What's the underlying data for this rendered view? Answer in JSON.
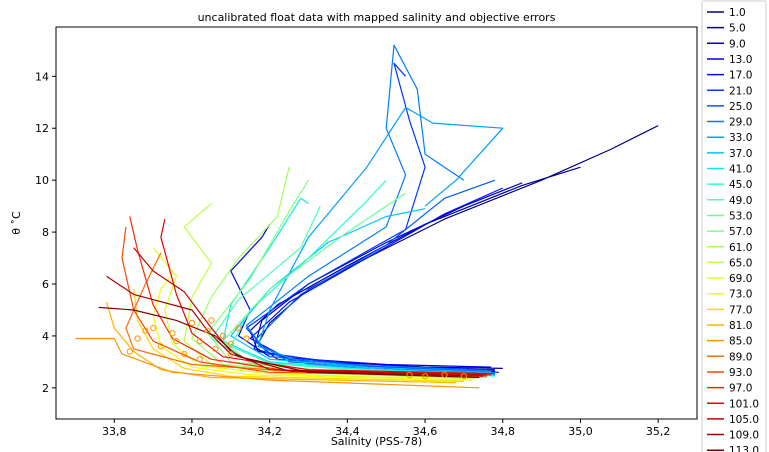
{
  "chart_data": {
    "type": "line",
    "title": "uncalibrated float data with mapped salinity and objective errors",
    "xlabel": "Salinity (PSS-78)",
    "ylabel": "θ ˚C",
    "xlim": [
      33.65,
      35.3
    ],
    "ylim": [
      0.8,
      15.9
    ],
    "x_ticks": [
      "33,8",
      "34,0",
      "34,2",
      "34,4",
      "34,6",
      "34,8",
      "35,0",
      "35,2"
    ],
    "x_tick_values": [
      33.8,
      34.0,
      34.2,
      34.4,
      34.6,
      34.8,
      35.0,
      35.2
    ],
    "y_ticks": [
      "2",
      "4",
      "6",
      "8",
      "10",
      "12",
      "14"
    ],
    "y_tick_values": [
      2,
      4,
      6,
      8,
      10,
      12,
      14
    ],
    "grid": false,
    "legend_position": "outside-right",
    "colormap": "jet",
    "series": [
      {
        "name": "1.0",
        "color": "#00007f",
        "points": [
          [
            34.78,
            2.7
          ],
          [
            34.6,
            2.7
          ],
          [
            34.4,
            2.85
          ],
          [
            34.22,
            3.1
          ],
          [
            34.17,
            3.7
          ],
          [
            34.2,
            4.5
          ],
          [
            34.3,
            5.8
          ],
          [
            34.45,
            7.0
          ],
          [
            34.65,
            8.5
          ],
          [
            34.9,
            10.0
          ],
          [
            35.08,
            11.2
          ],
          [
            35.2,
            12.1
          ]
        ]
      },
      {
        "name": "5.0",
        "color": "#0000a3",
        "points": [
          [
            34.8,
            2.75
          ],
          [
            34.6,
            2.8
          ],
          [
            34.35,
            3.0
          ],
          [
            34.17,
            3.4
          ],
          [
            34.15,
            4.2
          ],
          [
            34.22,
            5.2
          ],
          [
            34.4,
            6.7
          ],
          [
            34.6,
            8.3
          ],
          [
            34.85,
            9.8
          ],
          [
            35.0,
            10.5
          ]
        ]
      },
      {
        "name": "9.0",
        "color": "#0000c8",
        "points": [
          [
            34.78,
            2.65
          ],
          [
            34.55,
            2.75
          ],
          [
            34.3,
            2.95
          ],
          [
            34.16,
            3.5
          ],
          [
            34.18,
            4.6
          ],
          [
            34.3,
            6.0
          ],
          [
            34.5,
            7.6
          ],
          [
            34.7,
            9.0
          ],
          [
            34.85,
            9.9
          ]
        ]
      },
      {
        "name": "13.0",
        "color": "#0000ed",
        "points": [
          [
            34.77,
            2.8
          ],
          [
            34.5,
            2.9
          ],
          [
            34.2,
            3.2
          ],
          [
            34.12,
            4.0
          ],
          [
            34.15,
            5.0
          ],
          [
            34.1,
            6.5
          ],
          [
            34.18,
            7.8
          ],
          [
            34.2,
            8.3
          ]
        ]
      },
      {
        "name": "17.0",
        "color": "#0010ff",
        "points": [
          [
            34.79,
            2.6
          ],
          [
            34.5,
            2.8
          ],
          [
            34.25,
            3.1
          ],
          [
            34.15,
            3.9
          ],
          [
            34.25,
            5.3
          ],
          [
            34.45,
            7.0
          ],
          [
            34.65,
            8.7
          ],
          [
            34.8,
            9.7
          ]
        ]
      },
      {
        "name": "21.0",
        "color": "#0034ff",
        "points": [
          [
            34.76,
            2.7
          ],
          [
            34.45,
            2.85
          ],
          [
            34.2,
            3.3
          ],
          [
            34.14,
            4.3
          ],
          [
            34.3,
            6.0
          ],
          [
            34.55,
            8.1
          ],
          [
            34.6,
            10.5
          ],
          [
            34.56,
            12.3
          ],
          [
            34.52,
            14.5
          ],
          [
            34.55,
            14.0
          ]
        ]
      },
      {
        "name": "25.0",
        "color": "#0058ff",
        "points": [
          [
            34.78,
            2.55
          ],
          [
            34.5,
            2.75
          ],
          [
            34.25,
            3.0
          ],
          [
            34.16,
            3.8
          ],
          [
            34.28,
            5.6
          ],
          [
            34.5,
            7.5
          ],
          [
            34.65,
            9.3
          ],
          [
            34.78,
            10.0
          ]
        ]
      },
      {
        "name": "29.0",
        "color": "#007cff",
        "points": [
          [
            34.77,
            2.65
          ],
          [
            34.4,
            2.9
          ],
          [
            34.2,
            3.2
          ],
          [
            34.14,
            4.4
          ],
          [
            34.3,
            6.3
          ],
          [
            34.5,
            8.2
          ],
          [
            34.55,
            10.2
          ],
          [
            34.5,
            12.0
          ],
          [
            34.52,
            15.2
          ],
          [
            34.58,
            13.5
          ],
          [
            34.6,
            11.0
          ],
          [
            34.7,
            10.0
          ]
        ]
      },
      {
        "name": "33.0",
        "color": "#00a0ff",
        "points": [
          [
            34.78,
            2.5
          ],
          [
            34.5,
            2.7
          ],
          [
            34.3,
            2.9
          ],
          [
            34.17,
            3.6
          ],
          [
            34.2,
            5.0
          ],
          [
            34.3,
            7.8
          ],
          [
            34.45,
            10.5
          ],
          [
            34.55,
            12.8
          ],
          [
            34.62,
            12.2
          ],
          [
            34.8,
            12.0
          ],
          [
            34.68,
            10.0
          ],
          [
            34.6,
            9.0
          ]
        ]
      },
      {
        "name": "37.0",
        "color": "#00c4ff",
        "points": [
          [
            34.77,
            2.6
          ],
          [
            34.45,
            2.8
          ],
          [
            34.2,
            3.1
          ],
          [
            34.1,
            4.0
          ],
          [
            34.2,
            5.8
          ],
          [
            34.35,
            7.6
          ],
          [
            34.5,
            8.6
          ],
          [
            34.6,
            8.9
          ]
        ]
      },
      {
        "name": "41.0",
        "color": "#0de8f0",
        "points": [
          [
            34.76,
            2.55
          ],
          [
            34.4,
            2.75
          ],
          [
            34.2,
            3.0
          ],
          [
            34.08,
            3.8
          ],
          [
            34.1,
            5.2
          ],
          [
            34.2,
            7.4
          ],
          [
            34.28,
            9.3
          ],
          [
            34.3,
            9.1
          ]
        ]
      },
      {
        "name": "45.0",
        "color": "#2dffd0",
        "points": [
          [
            34.78,
            2.45
          ],
          [
            34.45,
            2.7
          ],
          [
            34.2,
            2.95
          ],
          [
            34.1,
            3.6
          ],
          [
            34.15,
            5.0
          ],
          [
            34.3,
            7.0
          ],
          [
            34.45,
            9.2
          ],
          [
            34.5,
            10.0
          ]
        ]
      },
      {
        "name": "49.0",
        "color": "#4affb4",
        "points": [
          [
            34.77,
            2.5
          ],
          [
            34.4,
            2.7
          ],
          [
            34.15,
            3.0
          ],
          [
            34.05,
            3.9
          ],
          [
            34.12,
            5.4
          ],
          [
            34.28,
            7.4
          ],
          [
            34.33,
            9.0
          ]
        ]
      },
      {
        "name": "53.0",
        "color": "#66ff97",
        "points": [
          [
            34.76,
            2.4
          ],
          [
            34.35,
            2.65
          ],
          [
            34.15,
            2.95
          ],
          [
            34.08,
            3.8
          ],
          [
            34.2,
            5.8
          ],
          [
            34.4,
            8.0
          ],
          [
            34.55,
            9.5
          ]
        ]
      },
      {
        "name": "57.0",
        "color": "#83ff7b",
        "points": [
          [
            34.75,
            2.45
          ],
          [
            34.3,
            2.7
          ],
          [
            34.1,
            3.0
          ],
          [
            34.04,
            4.1
          ],
          [
            34.15,
            6.2
          ],
          [
            34.25,
            8.8
          ],
          [
            34.3,
            10.0
          ]
        ]
      },
      {
        "name": "61.0",
        "color": "#a0ff5e",
        "points": [
          [
            34.74,
            2.4
          ],
          [
            34.3,
            2.6
          ],
          [
            34.08,
            2.9
          ],
          [
            34.0,
            3.9
          ],
          [
            34.05,
            5.5
          ],
          [
            34.12,
            7.0
          ],
          [
            34.22,
            8.6
          ],
          [
            34.25,
            10.5
          ]
        ]
      },
      {
        "name": "65.0",
        "color": "#bdff41",
        "points": [
          [
            34.73,
            2.35
          ],
          [
            34.25,
            2.6
          ],
          [
            34.05,
            2.9
          ],
          [
            33.98,
            3.8
          ],
          [
            34.0,
            5.5
          ],
          [
            34.05,
            6.8
          ],
          [
            33.98,
            8.2
          ],
          [
            34.05,
            9.1
          ]
        ]
      },
      {
        "name": "69.0",
        "color": "#d9ff24",
        "points": [
          [
            34.72,
            2.3
          ],
          [
            34.2,
            2.55
          ],
          [
            34.02,
            2.85
          ],
          [
            33.95,
            3.7
          ],
          [
            33.93,
            5.0
          ],
          [
            33.96,
            6.3
          ],
          [
            33.9,
            7.4
          ]
        ]
      },
      {
        "name": "73.0",
        "color": "#f6ff07",
        "points": [
          [
            34.7,
            2.3
          ],
          [
            34.15,
            2.5
          ],
          [
            34.0,
            2.8
          ],
          [
            33.92,
            3.6
          ],
          [
            33.9,
            4.8
          ],
          [
            33.92,
            5.8
          ],
          [
            33.95,
            6.4
          ]
        ]
      },
      {
        "name": "77.0",
        "color": "#ffd700",
        "points": [
          [
            34.7,
            2.25
          ],
          [
            34.1,
            2.45
          ],
          [
            33.98,
            2.75
          ],
          [
            33.9,
            3.5
          ],
          [
            33.86,
            4.6
          ],
          [
            33.85,
            5.8
          ]
        ]
      },
      {
        "name": "81.0",
        "color": "#ffb300",
        "points": [
          [
            34.68,
            2.2
          ],
          [
            34.05,
            2.4
          ],
          [
            33.92,
            2.7
          ],
          [
            33.85,
            3.4
          ],
          [
            33.8,
            4.3
          ],
          [
            33.78,
            5.3
          ]
        ]
      },
      {
        "name": "85.0",
        "color": "#ff9000",
        "points": [
          [
            34.74,
            2.0
          ],
          [
            34.2,
            2.3
          ],
          [
            33.95,
            2.6
          ],
          [
            33.82,
            3.3
          ],
          [
            33.8,
            3.9
          ],
          [
            33.7,
            3.9
          ]
        ]
      },
      {
        "name": "89.0",
        "color": "#ff6c00",
        "points": [
          [
            34.75,
            2.5
          ],
          [
            34.3,
            2.6
          ],
          [
            34.0,
            2.9
          ],
          [
            33.85,
            3.5
          ],
          [
            33.83,
            4.3
          ],
          [
            33.88,
            6.0
          ],
          [
            33.92,
            7.2
          ]
        ]
      },
      {
        "name": "93.0",
        "color": "#ff4800",
        "points": [
          [
            34.76,
            2.45
          ],
          [
            34.2,
            2.6
          ],
          [
            34.02,
            3.0
          ],
          [
            33.9,
            3.8
          ],
          [
            33.85,
            5.0
          ],
          [
            33.82,
            7.0
          ],
          [
            33.83,
            8.2
          ]
        ]
      },
      {
        "name": "97.0",
        "color": "#ff2400",
        "points": [
          [
            34.77,
            2.5
          ],
          [
            34.25,
            2.65
          ],
          [
            34.05,
            3.1
          ],
          [
            33.95,
            3.9
          ],
          [
            33.9,
            5.2
          ],
          [
            33.86,
            7.3
          ],
          [
            33.84,
            8.6
          ]
        ]
      },
      {
        "name": "101.0",
        "color": "#ed0000",
        "points": [
          [
            34.77,
            2.55
          ],
          [
            34.3,
            2.7
          ],
          [
            34.08,
            3.2
          ],
          [
            34.0,
            4.1
          ],
          [
            33.96,
            5.6
          ],
          [
            33.92,
            7.8
          ],
          [
            33.93,
            8.5
          ]
        ]
      },
      {
        "name": "105.0",
        "color": "#c80000",
        "points": [
          [
            34.76,
            2.5
          ],
          [
            34.2,
            2.7
          ],
          [
            34.1,
            3.4
          ],
          [
            34.05,
            4.3
          ],
          [
            33.98,
            5.7
          ],
          [
            33.9,
            6.5
          ],
          [
            33.85,
            7.4
          ]
        ]
      },
      {
        "name": "109.0",
        "color": "#a40000",
        "points": [
          [
            34.75,
            2.45
          ],
          [
            34.25,
            2.65
          ],
          [
            34.1,
            3.3
          ],
          [
            34.04,
            4.2
          ],
          [
            34.0,
            5.0
          ],
          [
            33.85,
            5.6
          ],
          [
            33.78,
            6.3
          ]
        ]
      },
      {
        "name": "113.0",
        "color": "#7f0000",
        "points": [
          [
            34.74,
            2.4
          ],
          [
            34.3,
            2.6
          ],
          [
            34.12,
            3.2
          ],
          [
            34.06,
            4.0
          ],
          [
            33.96,
            4.6
          ],
          [
            33.85,
            5.0
          ],
          [
            33.76,
            5.1
          ]
        ]
      }
    ],
    "markers": {
      "color": "#ff9500",
      "points": [
        [
          33.84,
          3.4
        ],
        [
          33.86,
          3.9
        ],
        [
          33.9,
          4.3
        ],
        [
          33.92,
          3.6
        ],
        [
          33.95,
          4.1
        ],
        [
          33.98,
          3.3
        ],
        [
          34.0,
          4.5
        ],
        [
          34.02,
          3.8
        ],
        [
          34.04,
          4.2
        ],
        [
          34.06,
          3.5
        ],
        [
          34.08,
          4.0
        ],
        [
          34.1,
          3.7
        ],
        [
          34.12,
          4.3
        ],
        [
          34.14,
          3.9
        ],
        [
          34.02,
          3.1
        ],
        [
          33.96,
          3.8
        ],
        [
          33.88,
          4.2
        ],
        [
          34.05,
          4.6
        ],
        [
          34.1,
          3.3
        ],
        [
          34.56,
          2.5
        ],
        [
          34.6,
          2.45
        ],
        [
          34.65,
          2.5
        ],
        [
          34.7,
          2.45
        ]
      ]
    }
  }
}
